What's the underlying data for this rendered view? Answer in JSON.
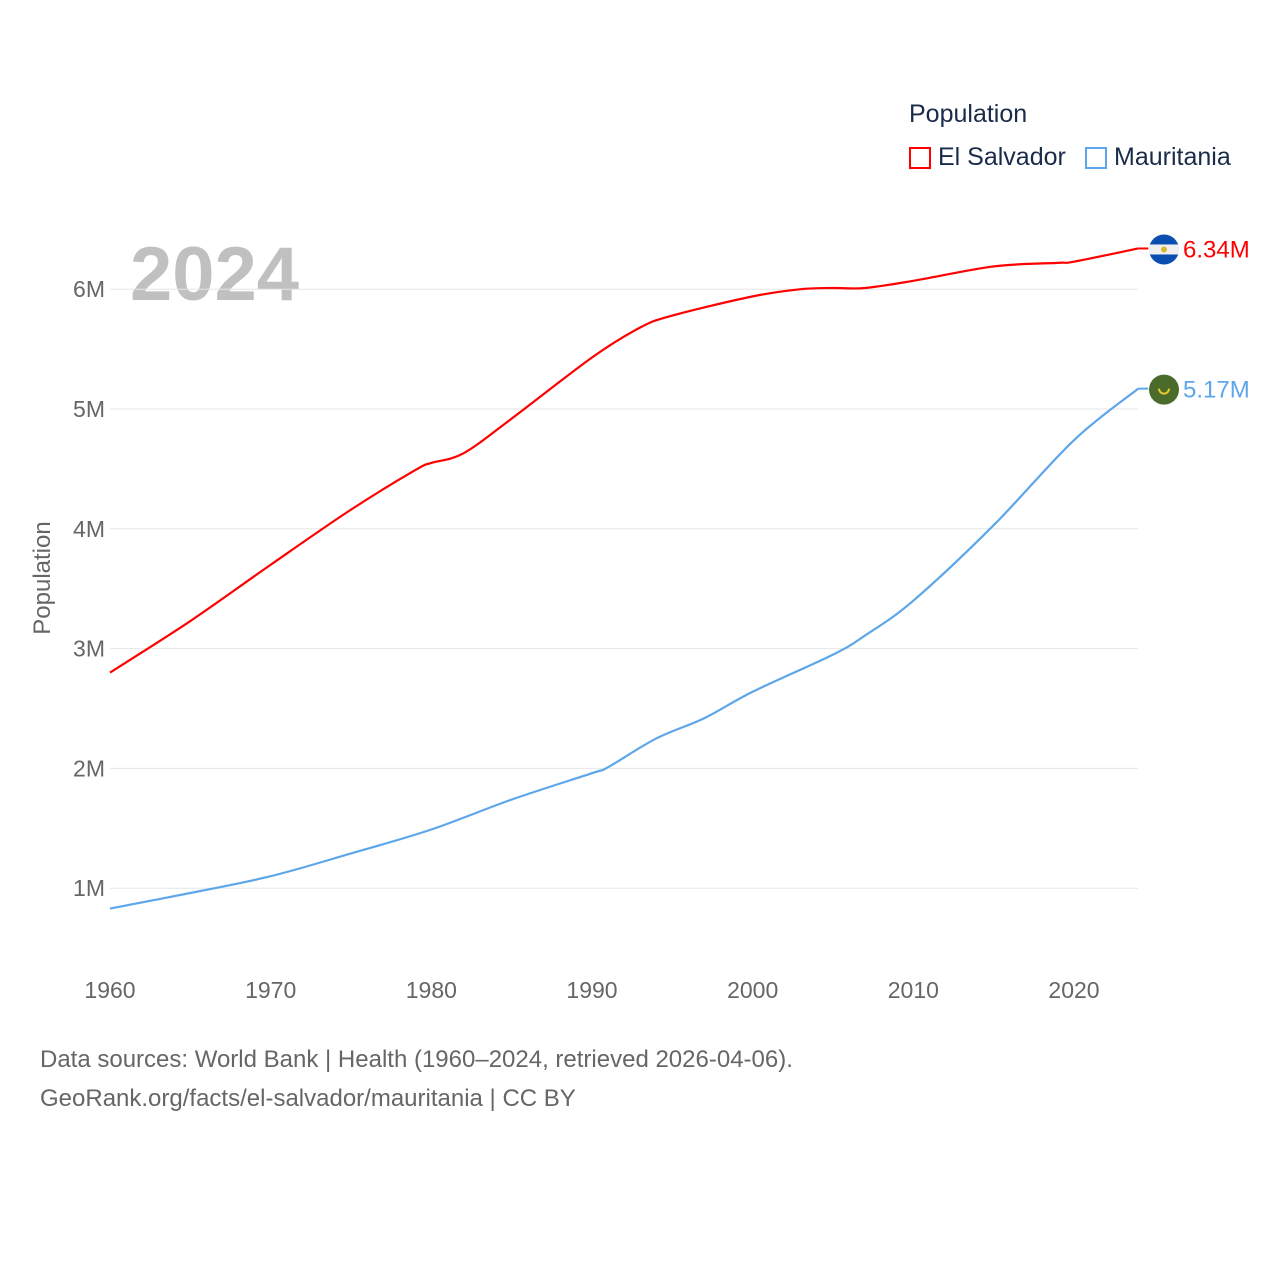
{
  "chart_data": {
    "type": "line",
    "title": "2024",
    "ylabel": "Population",
    "xlabel": "",
    "xlim": [
      1960,
      2024
    ],
    "ylim": [
      0,
      6500000
    ],
    "x_ticks": [
      "1960",
      "1970",
      "1980",
      "1990",
      "2000",
      "2010",
      "2020"
    ],
    "y_ticks": [
      "1M",
      "2M",
      "3M",
      "4M",
      "5M",
      "6M"
    ],
    "y_tick_values": [
      1000000,
      2000000,
      3000000,
      4000000,
      5000000,
      6000000
    ],
    "legend_title": "Population",
    "legend_position": "top-right",
    "grid": true,
    "series": [
      {
        "name": "El Salvador",
        "color": "#ff0000",
        "end_label": "6.34M",
        "flag": "el-salvador-flag",
        "x": [
          1960,
          1965,
          1970,
          1975,
          1979,
          1980,
          1982,
          1985,
          1990,
          1993,
          1995,
          2000,
          2003,
          2005,
          2007,
          2010,
          2015,
          2019,
          2020,
          2024
        ],
        "y": [
          2.8,
          3.23,
          3.7,
          4.16,
          4.49,
          4.55,
          4.63,
          4.92,
          5.43,
          5.68,
          5.78,
          5.94,
          6.0,
          6.01,
          6.01,
          6.07,
          6.19,
          6.22,
          6.23,
          6.34
        ]
      },
      {
        "name": "Mauritania",
        "color": "#5ea6ea",
        "end_label": "5.17M",
        "flag": "mauritania-flag",
        "x": [
          1960,
          1965,
          1970,
          1975,
          1980,
          1985,
          1990,
          1991,
          1994,
          1997,
          2000,
          2005,
          2007,
          2010,
          2015,
          2020,
          2024
        ],
        "y": [
          0.83,
          0.96,
          1.1,
          1.29,
          1.49,
          1.74,
          1.96,
          2.01,
          2.25,
          2.42,
          2.64,
          2.95,
          3.11,
          3.4,
          4.03,
          4.74,
          5.17
        ]
      }
    ]
  },
  "footer": {
    "line1": "Data sources: World Bank | Health (1960–2024, retrieved 2026-04-06).",
    "line2": "GeoRank.org/facts/el-salvador/mauritania | CC BY"
  }
}
